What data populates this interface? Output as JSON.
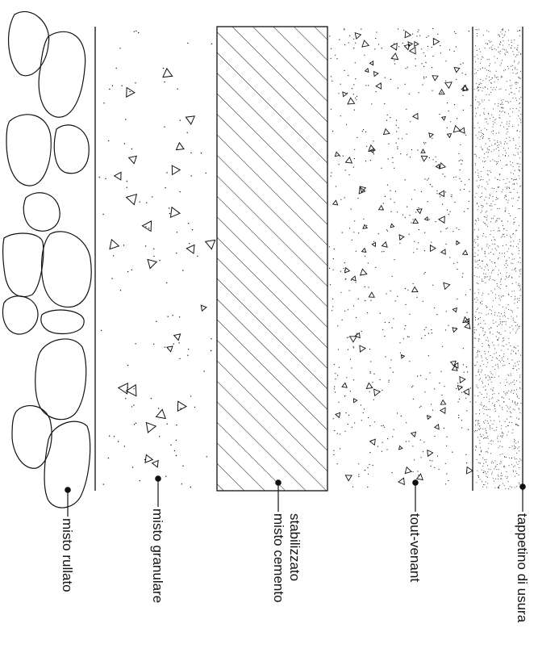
{
  "layers": [
    {
      "id": "misto-rullato",
      "label": "misto rullato"
    },
    {
      "id": "misto-granulare",
      "label": "misto granulare"
    },
    {
      "id": "misto-cementato",
      "label": "misto cemento stabilizzato"
    },
    {
      "id": "tout-venant",
      "label": "tout-venant"
    },
    {
      "id": "tappetino",
      "label": "tappetino di usura"
    }
  ],
  "colors": {
    "ink": "#111111",
    "background": "#ffffff"
  }
}
